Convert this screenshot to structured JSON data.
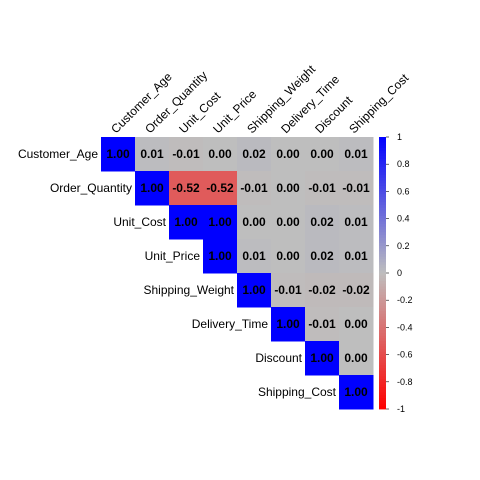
{
  "chart_data": {
    "type": "heatmap",
    "layout": "upper-triangle",
    "variables": [
      "Customer_Age",
      "Order_Quantity",
      "Unit_Cost",
      "Unit_Price",
      "Shipping_Weight",
      "Delivery_Time",
      "Discount",
      "Shipping_Cost"
    ],
    "column_labels": [
      "Customer_Age",
      "Order_Quantity",
      "Unit_Cost",
      "Unit_Price",
      "Shipping_Weight",
      "Delivery_Time",
      "Discount",
      "Shipping_Cost"
    ],
    "values": [
      [
        1.0,
        0.01,
        -0.01,
        0.0,
        0.02,
        0.0,
        0.0,
        0.01
      ],
      [
        null,
        1.0,
        -0.52,
        -0.52,
        -0.01,
        0.0,
        -0.01,
        -0.01
      ],
      [
        null,
        null,
        1.0,
        1.0,
        0.0,
        0.0,
        0.02,
        0.01
      ],
      [
        null,
        null,
        null,
        1.0,
        0.01,
        0.0,
        0.02,
        0.01
      ],
      [
        null,
        null,
        null,
        null,
        1.0,
        -0.01,
        -0.02,
        -0.02
      ],
      [
        null,
        null,
        null,
        null,
        null,
        1.0,
        -0.01,
        0.0
      ],
      [
        null,
        null,
        null,
        null,
        null,
        null,
        1.0,
        0.0
      ],
      [
        null,
        null,
        null,
        null,
        null,
        null,
        null,
        1.0
      ]
    ],
    "value_labels": [
      [
        "1.00",
        "0.01",
        "-0.01",
        "0.00",
        "0.02",
        "0.00",
        "0.00",
        "0.01"
      ],
      [
        null,
        "1.00",
        "-0.52",
        "-0.52",
        "-0.01",
        "0.00",
        "-0.01",
        "-0.01"
      ],
      [
        null,
        null,
        "1.00",
        "1.00",
        "0.00",
        "0.00",
        "0.02",
        "0.01"
      ],
      [
        null,
        null,
        null,
        "1.00",
        "0.01",
        "0.00",
        "0.02",
        "0.01"
      ],
      [
        null,
        null,
        null,
        null,
        "1.00",
        "-0.01",
        "-0.02",
        "-0.02"
      ],
      [
        null,
        null,
        null,
        null,
        null,
        "1.00",
        "-0.01",
        "0.00"
      ],
      [
        null,
        null,
        null,
        null,
        null,
        null,
        "1.00",
        "0.00"
      ],
      [
        null,
        null,
        null,
        null,
        null,
        null,
        null,
        "1.00"
      ]
    ],
    "color_scale": {
      "min": -1,
      "max": 1,
      "low_color": "#FF0000",
      "mid_color": "#BEBEBE",
      "high_color": "#0000FF",
      "ticks": [
        -1,
        -0.8,
        -0.6,
        -0.4,
        -0.2,
        0,
        0.2,
        0.4,
        0.6,
        0.8,
        1
      ],
      "tick_labels": [
        "-1",
        "-0.8",
        "-0.6",
        "-0.4",
        "-0.2",
        "0",
        "0.2",
        "0.4",
        "0.6",
        "0.8",
        "1"
      ]
    },
    "title": "",
    "xlabel": "",
    "ylabel": ""
  }
}
